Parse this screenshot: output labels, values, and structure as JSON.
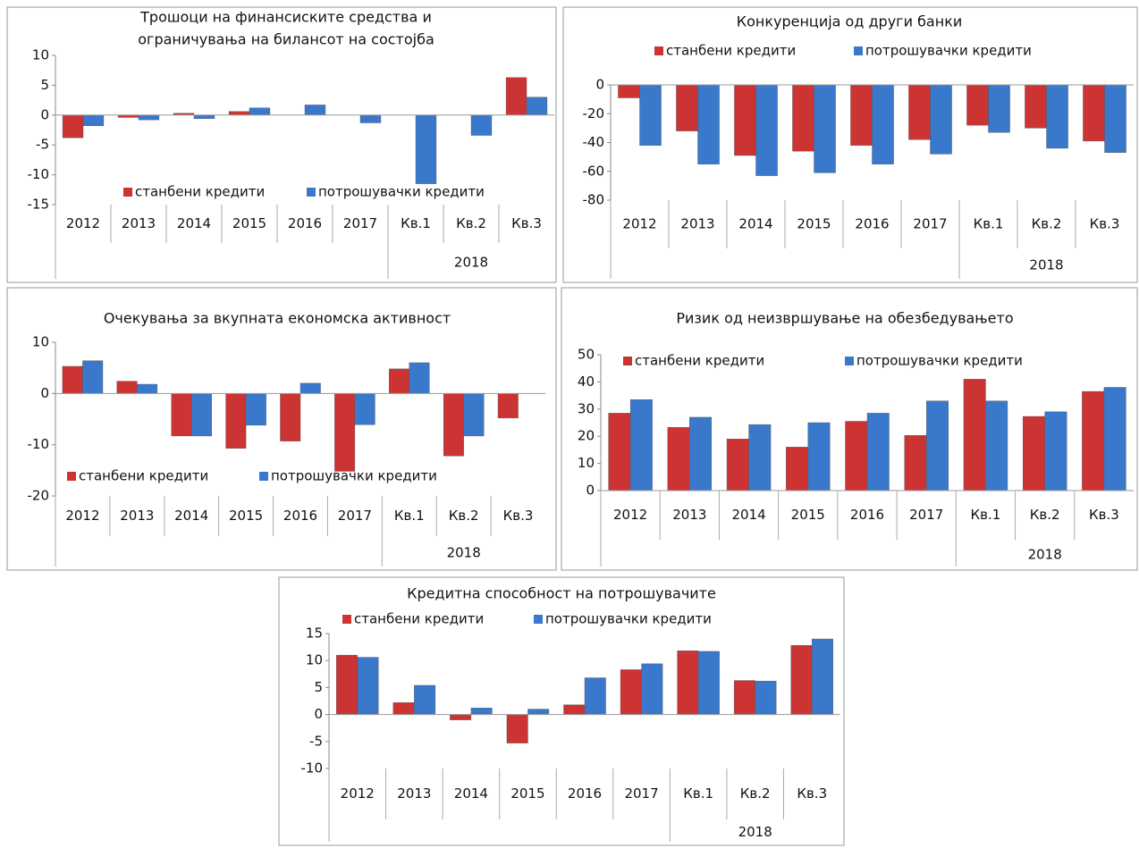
{
  "chart_data": [
    {
      "type": "bar",
      "title": [
        "Трошоци на финансиските средства и",
        "ограничувања на билансот на состојба"
      ],
      "categories": [
        "2012",
        "2013",
        "2014",
        "2015",
        "2016",
        "2017",
        "Кв.1",
        "Кв.2",
        "Кв.3"
      ],
      "category_groups": [
        {
          "label": "2018",
          "from": 6,
          "to": 8
        }
      ],
      "series": [
        {
          "name": "станбени кредити",
          "color": "#cc3333",
          "values": [
            -3.8,
            -0.4,
            0.3,
            0.6,
            0,
            0,
            0,
            0,
            6.3
          ]
        },
        {
          "name": "потрошувачки кредити",
          "color": "#3a78cc",
          "values": [
            -1.8,
            -0.8,
            -0.6,
            1.2,
            1.7,
            -1.3,
            -11.5,
            -3.4,
            3.0
          ]
        }
      ],
      "ylim": [
        -15,
        10
      ],
      "yticks": [
        10,
        5,
        0,
        -5,
        -10,
        -15
      ]
    },
    {
      "type": "bar",
      "title": [
        "Конкуренција од други банки"
      ],
      "categories": [
        "2012",
        "2013",
        "2014",
        "2015",
        "2016",
        "2017",
        "Кв.1",
        "Кв.2",
        "Кв.3"
      ],
      "category_groups": [
        {
          "label": "2018",
          "from": 6,
          "to": 8
        }
      ],
      "series": [
        {
          "name": "станбени кредити",
          "color": "#cc3333",
          "values": [
            -9,
            -32,
            -49,
            -46,
            -42,
            -38,
            -28,
            -30,
            -39
          ]
        },
        {
          "name": "потрошувачки кредити",
          "color": "#3a78cc",
          "values": [
            -42,
            -55,
            -63,
            -61,
            -55,
            -48,
            -33,
            -44,
            -47
          ]
        }
      ],
      "ylim": [
        -80,
        0
      ],
      "yticks": [
        0,
        -20,
        -40,
        -60,
        -80
      ]
    },
    {
      "type": "bar",
      "title": [
        "Очекувања за вкупната економска активност"
      ],
      "categories": [
        "2012",
        "2013",
        "2014",
        "2015",
        "2016",
        "2017",
        "Кв.1",
        "Кв.2",
        "Кв.3"
      ],
      "category_groups": [
        {
          "label": "2018",
          "from": 6,
          "to": 8
        }
      ],
      "series": [
        {
          "name": "станбени кредити",
          "color": "#cc3333",
          "values": [
            5.3,
            2.4,
            -8.3,
            -10.7,
            -9.3,
            -15.2,
            4.8,
            -12.2,
            -4.8
          ]
        },
        {
          "name": "потрошувачки кредити",
          "color": "#3a78cc",
          "values": [
            6.4,
            1.8,
            -8.3,
            -6.2,
            2.0,
            -6.1,
            6.0,
            -8.3,
            0
          ]
        }
      ],
      "ylim": [
        -20,
        10
      ],
      "yticks": [
        10,
        0,
        -10,
        -20
      ]
    },
    {
      "type": "bar",
      "title": [
        "Ризик од неизвршување на обезбедувањето"
      ],
      "categories": [
        "2012",
        "2013",
        "2014",
        "2015",
        "2016",
        "2017",
        "Кв.1",
        "Кв.2",
        "Кв.3"
      ],
      "category_groups": [
        {
          "label": "2018",
          "from": 6,
          "to": 8
        }
      ],
      "series": [
        {
          "name": "станбени кредити",
          "color": "#cc3333",
          "values": [
            28.5,
            23.3,
            19,
            16,
            25.5,
            20.3,
            41,
            27.3,
            36.5
          ]
        },
        {
          "name": "потрошувачки кредити",
          "color": "#3a78cc",
          "values": [
            33.5,
            27,
            24.3,
            25,
            28.5,
            33,
            33,
            29,
            38
          ]
        }
      ],
      "ylim": [
        0,
        50
      ],
      "yticks": [
        50,
        40,
        30,
        20,
        10,
        0
      ]
    },
    {
      "type": "bar",
      "title": [
        "Кредитна способност на потрошувачите"
      ],
      "categories": [
        "2012",
        "2013",
        "2014",
        "2015",
        "2016",
        "2017",
        "Кв.1",
        "Кв.2",
        "Кв.3"
      ],
      "category_groups": [
        {
          "label": "2018",
          "from": 6,
          "to": 8
        }
      ],
      "series": [
        {
          "name": "станбени кредити",
          "color": "#cc3333",
          "values": [
            11,
            2.2,
            -1.0,
            -5.3,
            1.8,
            8.3,
            11.8,
            6.3,
            12.8
          ]
        },
        {
          "name": "потрошувачки кредити",
          "color": "#3a78cc",
          "values": [
            10.6,
            5.4,
            1.2,
            1.0,
            6.8,
            9.4,
            11.7,
            6.2,
            14.0
          ]
        }
      ],
      "ylim": [
        -10,
        15
      ],
      "yticks": [
        15,
        10,
        5,
        0,
        -5,
        -10
      ]
    }
  ]
}
